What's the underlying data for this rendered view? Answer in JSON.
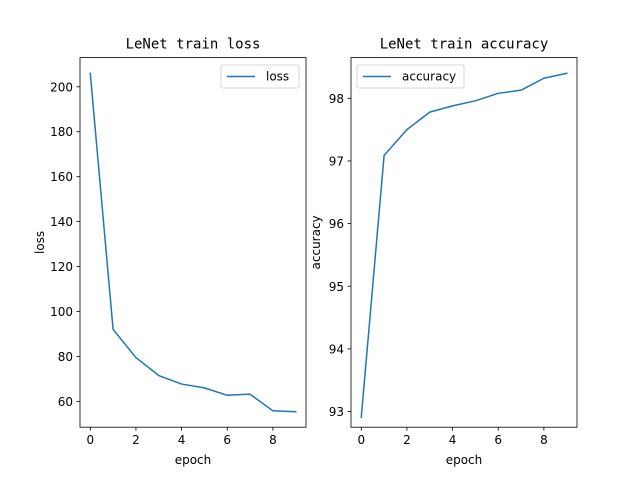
{
  "chart_data": [
    {
      "type": "line",
      "title": "LeNet train loss",
      "xlabel": "epoch",
      "ylabel": "loss",
      "xlim": [
        -0.45,
        9.45
      ],
      "ylim": [
        48.5,
        213.0
      ],
      "xticks": [
        0,
        2,
        4,
        6,
        8
      ],
      "yticks": [
        60,
        80,
        100,
        120,
        140,
        160,
        180,
        200
      ],
      "xtick_labels": [
        "0",
        "2",
        "4",
        "6",
        "8"
      ],
      "ytick_labels": [
        "60",
        "80",
        "100",
        "120",
        "140",
        "160",
        "180",
        "200"
      ],
      "legend_position": "upper right",
      "grid": false,
      "x": [
        0,
        1,
        2,
        3,
        4,
        5,
        6,
        7,
        8,
        9
      ],
      "series": [
        {
          "name": "loss",
          "color": "#1f77b4",
          "values": [
            206.0,
            92.0,
            79.5,
            71.5,
            67.7,
            66.0,
            62.7,
            63.2,
            55.8,
            55.4
          ]
        }
      ]
    },
    {
      "type": "line",
      "title": "LeNet train accuracy",
      "xlabel": "epoch",
      "ylabel": "accuracy",
      "xlim": [
        -0.45,
        9.45
      ],
      "ylim": [
        92.75,
        98.65
      ],
      "xticks": [
        0,
        2,
        4,
        6,
        8
      ],
      "yticks": [
        93,
        94,
        95,
        96,
        97,
        98
      ],
      "xtick_labels": [
        "0",
        "2",
        "4",
        "6",
        "8"
      ],
      "ytick_labels": [
        "93",
        "94",
        "95",
        "96",
        "97",
        "98"
      ],
      "legend_position": "upper left",
      "grid": false,
      "x": [
        0,
        1,
        2,
        3,
        4,
        5,
        6,
        7,
        8,
        9
      ],
      "series": [
        {
          "name": "accuracy",
          "color": "#1f77b4",
          "values": [
            92.91,
            97.09,
            97.5,
            97.78,
            97.88,
            97.96,
            98.08,
            98.13,
            98.32,
            98.4
          ]
        }
      ]
    }
  ]
}
